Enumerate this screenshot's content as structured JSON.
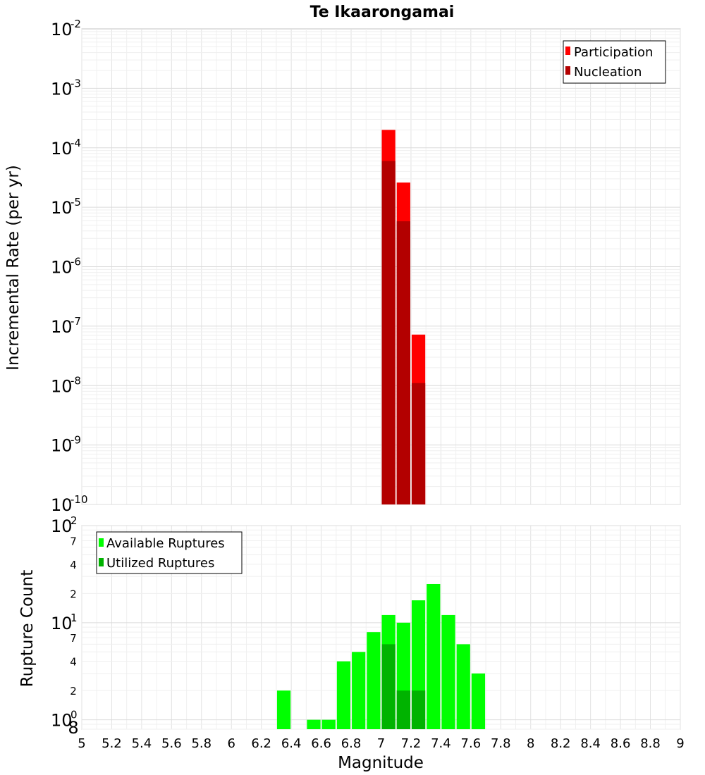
{
  "chart_data": {
    "title": "Te Ikaarongamai",
    "x": {
      "label": "Magnitude",
      "range": [
        5,
        9
      ],
      "ticks": [
        5,
        5.2,
        5.4,
        5.6,
        5.8,
        6,
        6.2,
        6.4,
        6.6,
        6.8,
        7,
        7.2,
        7.4,
        7.6,
        7.8,
        8,
        8.2,
        8.4,
        8.6,
        8.8,
        9
      ],
      "tick_labels": [
        "5",
        "5.2",
        "5.4",
        "5.6",
        "5.8",
        "6",
        "6.2",
        "6.4",
        "6.6",
        "6.8",
        "7",
        "7.2",
        "7.4",
        "7.6",
        "7.8",
        "8",
        "8.2",
        "8.4",
        "8.6",
        "8.8",
        "9"
      ],
      "bin_width": 0.1
    },
    "panels": [
      {
        "type": "bar",
        "ylabel": "Incremental Rate (per yr)",
        "yscale": "log",
        "ylim": [
          1e-10,
          0.01
        ],
        "y_tick_exponents": [
          "-10",
          "-9",
          "-8",
          "-7",
          "-6",
          "-5",
          "-4",
          "-3",
          "-2"
        ],
        "y_tick_base": "10",
        "legend": {
          "position": "top-right",
          "entries": [
            "Participation",
            "Nucleation"
          ]
        },
        "series": [
          {
            "name": "Participation",
            "color": "#ff0000",
            "x": [
              7.05,
              7.15,
              7.25
            ],
            "values": [
              0.0002,
              2.6e-05,
              7.2e-08
            ]
          },
          {
            "name": "Nucleation",
            "color": "#b30000",
            "x": [
              7.05,
              7.15,
              7.25
            ],
            "values": [
              6e-05,
              5.8e-06,
              1.1e-08
            ]
          }
        ]
      },
      {
        "type": "bar",
        "ylabel": "Rupture Count",
        "yscale": "log",
        "ylim": [
          0.8,
          100
        ],
        "y_major_ticks": [
          {
            "value": 1,
            "base": "10",
            "exp": "0"
          },
          {
            "value": 10,
            "base": "10",
            "exp": "1"
          },
          {
            "value": 100,
            "base": "10",
            "exp": "2"
          }
        ],
        "y_minor_ticks": [
          {
            "value": 0.8,
            "label": "8"
          },
          {
            "value": 2,
            "label": "2"
          },
          {
            "value": 4,
            "label": "4"
          },
          {
            "value": 7,
            "label": "7"
          },
          {
            "value": 20,
            "label": "2"
          },
          {
            "value": 40,
            "label": "4"
          },
          {
            "value": 70,
            "label": "7"
          }
        ],
        "legend": {
          "position": "top-left",
          "entries": [
            "Available Ruptures",
            "Utilized Ruptures"
          ]
        },
        "series": [
          {
            "name": "Available Ruptures",
            "color": "#00ff00",
            "x": [
              6.35,
              6.55,
              6.65,
              6.75,
              6.85,
              6.95,
              7.05,
              7.15,
              7.25,
              7.35,
              7.45,
              7.55,
              7.65
            ],
            "values": [
              2,
              1,
              1,
              4,
              5,
              8,
              12,
              10,
              17,
              25,
              12,
              6,
              3
            ]
          },
          {
            "name": "Utilized Ruptures",
            "color": "#00b300",
            "x": [
              7.05,
              7.15,
              7.25
            ],
            "values": [
              6,
              2,
              2
            ]
          }
        ]
      }
    ]
  }
}
